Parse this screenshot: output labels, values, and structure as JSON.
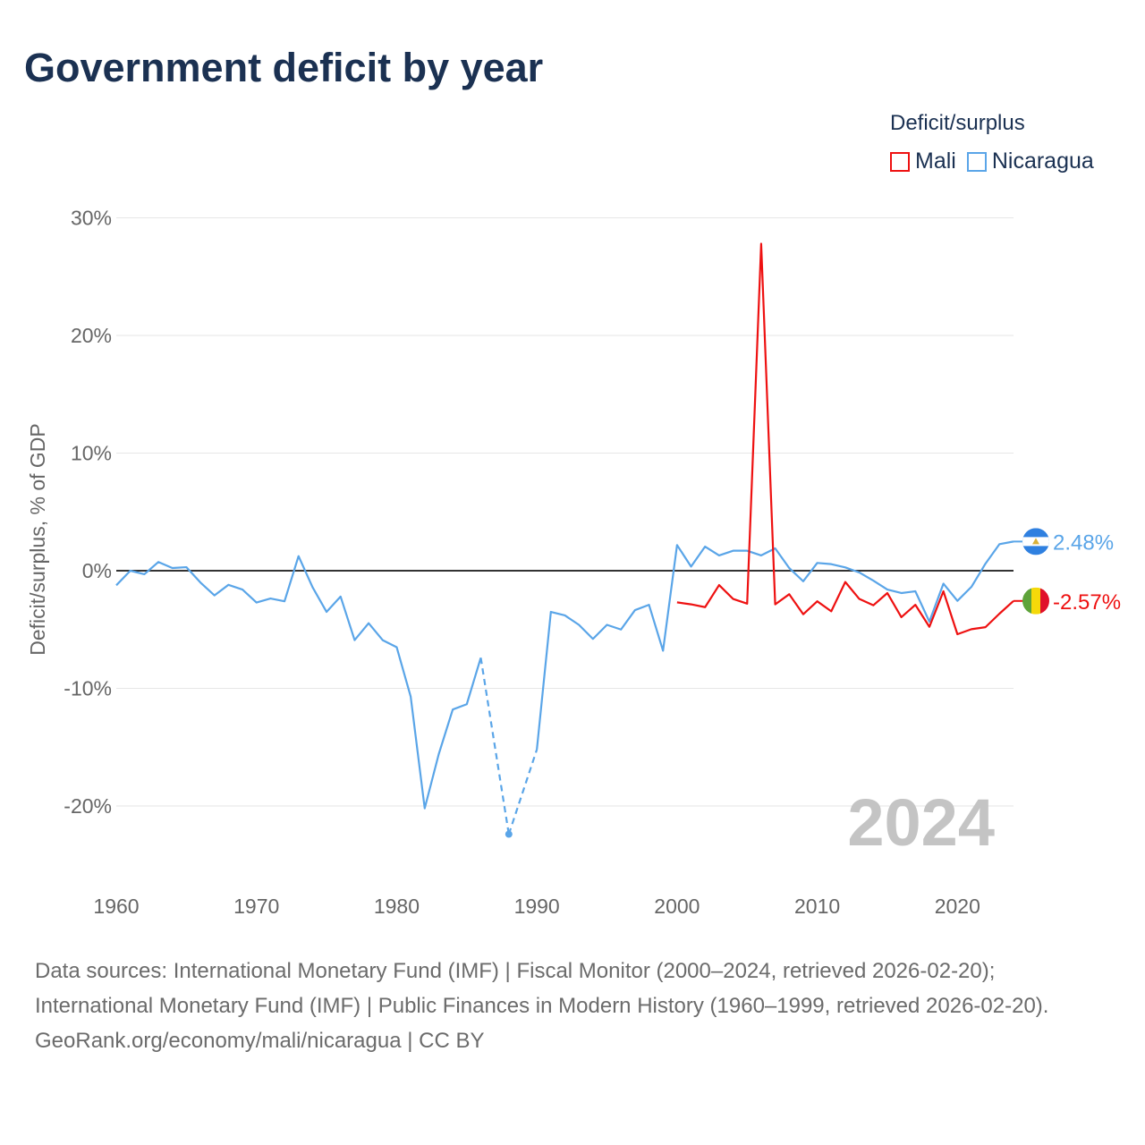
{
  "header": {
    "title": "Government deficit by year"
  },
  "legend": {
    "title": "Deficit/surplus",
    "items": [
      {
        "label": "Mali",
        "color": "#ee1111"
      },
      {
        "label": "Nicaragua",
        "color": "#5aa5e8"
      }
    ]
  },
  "chart_data": {
    "type": "line",
    "title": "Government deficit by year",
    "ylabel": "Deficit/surplus, % of GDP",
    "xlabel": "",
    "xlim": [
      1960,
      2024
    ],
    "ylim": [
      -25,
      30
    ],
    "yticks": [
      {
        "v": 30,
        "label": "30%"
      },
      {
        "v": 20,
        "label": "20%"
      },
      {
        "v": 10,
        "label": "10%"
      },
      {
        "v": 0,
        "label": "0%"
      },
      {
        "v": -10,
        "label": "-10%"
      },
      {
        "v": -20,
        "label": "-20%"
      }
    ],
    "xticks": [
      {
        "v": 1960,
        "label": "1960"
      },
      {
        "v": 1970,
        "label": "1970"
      },
      {
        "v": 1980,
        "label": "1980"
      },
      {
        "v": 1990,
        "label": "1990"
      },
      {
        "v": 2000,
        "label": "2000"
      },
      {
        "v": 2010,
        "label": "2010"
      },
      {
        "v": 2020,
        "label": "2020"
      }
    ],
    "year_watermark": "2024",
    "grid": true,
    "legend_position": "top-right",
    "series": [
      {
        "name": "Nicaragua",
        "color": "#5aa5e8",
        "start": 1960,
        "end_label": "2.48%",
        "values": [
          -1.24,
          0.0,
          -0.3,
          0.74,
          0.23,
          0.3,
          -1.0,
          -2.1,
          -1.2,
          -1.6,
          -2.7,
          -2.36,
          -2.6,
          1.24,
          -1.4,
          -3.5,
          -2.2,
          -5.9,
          -4.46,
          -5.9,
          -6.5,
          -10.7,
          -20.2,
          -15.6,
          -11.8,
          -11.35,
          -7.4,
          null,
          -22.4,
          null,
          -15.2,
          -3.5,
          -3.8,
          -4.6,
          -5.8,
          -4.6,
          -5.0,
          -3.35,
          -2.9,
          -6.8,
          2.18,
          0.35,
          2.05,
          1.3,
          1.7,
          1.7,
          1.3,
          1.9,
          0.23,
          -0.9,
          0.66,
          0.56,
          0.28,
          -0.15,
          -0.84,
          -1.6,
          -1.9,
          -1.75,
          -4.33,
          -1.1,
          -2.56,
          -1.37,
          0.6,
          2.26,
          2.48
        ]
      },
      {
        "name": "Mali",
        "color": "#ee1111",
        "start": 2000,
        "end_label": "-2.57%",
        "values": [
          -2.69,
          -2.86,
          -3.1,
          -1.22,
          -2.4,
          -2.8,
          27.8,
          -2.86,
          -2.0,
          -3.7,
          -2.6,
          -3.45,
          -0.96,
          -2.4,
          -2.94,
          -1.9,
          -3.95,
          -2.9,
          -4.77,
          -1.75,
          -5.4,
          -4.97,
          -4.8,
          -3.65,
          -2.57
        ]
      }
    ]
  },
  "footer": {
    "sources": "Data sources: International Monetary Fund (IMF) | Fiscal Monitor (2000–2024, retrieved 2026-02-20); International Monetary Fund (IMF) | Public Finances in Modern History (1960–1999, retrieved 2026-02-20).",
    "credit": "GeoRank.org/economy/mali/nicaragua | CC BY"
  }
}
